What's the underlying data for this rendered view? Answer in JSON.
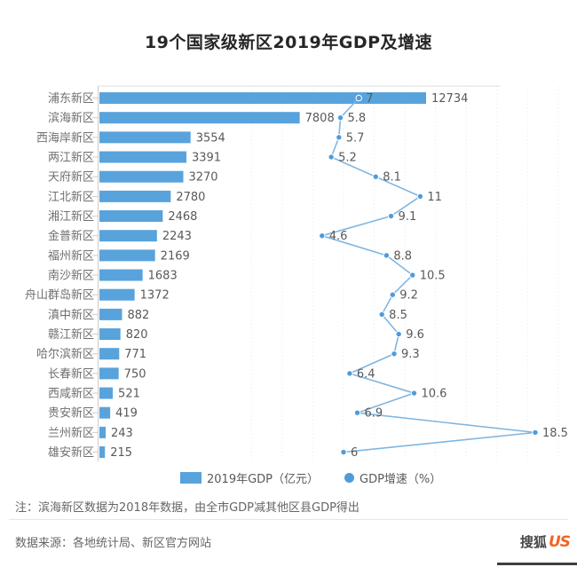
{
  "title": "19个国家级新区2019年GDP及增速",
  "chart_data": {
    "type": "bar",
    "subtype": "horizontal-bar-with-line-overlay",
    "title": "19个国家级新区2019年GDP及增速",
    "categories": [
      "浦东新区",
      "滨海新区",
      "西海岸新区",
      "两江新区",
      "天府新区",
      "江北新区",
      "湘江新区",
      "金普新区",
      "福州新区",
      "南沙新区",
      "舟山群岛新区",
      "滇中新区",
      "赣江新区",
      "哈尔滨新区",
      "长春新区",
      "西咸新区",
      "贵安新区",
      "兰州新区",
      "雄安新区"
    ],
    "series": [
      {
        "name": "2019年GDP（亿元）",
        "type": "bar",
        "values": [
          12734,
          7808,
          3554,
          3391,
          3270,
          2780,
          2468,
          2243,
          2169,
          1683,
          1372,
          882,
          820,
          771,
          750,
          521,
          419,
          243,
          215
        ]
      },
      {
        "name": "GDP增速（%）",
        "type": "line",
        "values": [
          7,
          5.8,
          5.7,
          5.2,
          8.1,
          11,
          9.1,
          4.6,
          8.8,
          10.5,
          9.2,
          8.5,
          9.6,
          9.3,
          6.4,
          10.6,
          6.9,
          18.5,
          6
        ]
      }
    ],
    "xlim_gdp": [
      0,
      12734
    ],
    "xlim_growth": [
      0,
      20
    ],
    "grid": "faint dotted vertical gridlines every 2% on growth axis",
    "legend_position": "bottom",
    "data_labels": true,
    "colors": {
      "bar": "#58A3DC",
      "line": "#7FB6E2",
      "dot": "#4F9BDB",
      "label": "#595959",
      "category": "#6F6F6F",
      "axis": "#CCCCCC",
      "gridline": "#EAEAEA"
    }
  },
  "note": "注：滨海新区数据为2018年数据，由全市GDP减其他区县GDP得出",
  "source": "数据来源：各地统计局、新区官方网站",
  "watermark": {
    "text": "搜狐",
    "mark": "US"
  }
}
